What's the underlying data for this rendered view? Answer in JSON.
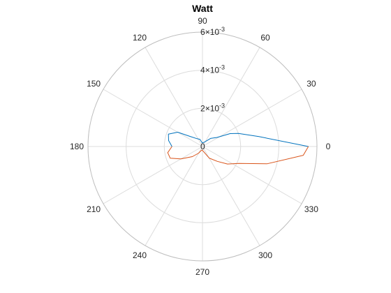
{
  "chart_data": {
    "type": "polar-line",
    "title": "Watt",
    "theta_unit": "degrees",
    "theta_ticks": [
      "0",
      "30",
      "60",
      "90",
      "120",
      "150",
      "180",
      "210",
      "240",
      "270",
      "300",
      "330"
    ],
    "r_ticks": [
      {
        "value": 0,
        "mantissa": "0",
        "exponent": ""
      },
      {
        "value": 0.002,
        "mantissa": "2",
        "exponent": "-3"
      },
      {
        "value": 0.004,
        "mantissa": "4",
        "exponent": "-3"
      },
      {
        "value": 0.006,
        "mantissa": "6",
        "exponent": "-3"
      }
    ],
    "rlim": [
      0,
      0.006
    ],
    "grid": true,
    "series": [
      {
        "color": "#0072bd",
        "points": [
          [
            0,
            0.00555
          ],
          [
            10,
            0.003
          ],
          [
            20,
            0.002
          ],
          [
            25,
            0.0016
          ],
          [
            32,
            0.0009
          ],
          [
            45,
            0.0006
          ],
          [
            60,
            0.0003
          ],
          [
            80,
            0.0002
          ],
          [
            95,
            0.0002
          ],
          [
            110,
            0.0004
          ],
          [
            125,
            0.0005
          ],
          [
            140,
            0.0008
          ],
          [
            150,
            0.0015
          ],
          [
            160,
            0.0019
          ],
          [
            170,
            0.0018
          ],
          [
            180,
            0.0016
          ]
        ]
      },
      {
        "color": "#d95319",
        "points": [
          [
            180,
            0.0016
          ],
          [
            190,
            0.00185
          ],
          [
            200,
            0.0018
          ],
          [
            210,
            0.0013
          ],
          [
            225,
            0.00075
          ],
          [
            240,
            0.0004
          ],
          [
            255,
            0.0002
          ],
          [
            270,
            0.0002
          ],
          [
            285,
            0.0003
          ],
          [
            300,
            0.0007
          ],
          [
            315,
            0.0011
          ],
          [
            325,
            0.0016
          ],
          [
            335,
            0.0021
          ],
          [
            345,
            0.0035
          ],
          [
            355,
            0.0053
          ],
          [
            360,
            0.00555
          ]
        ]
      }
    ]
  }
}
